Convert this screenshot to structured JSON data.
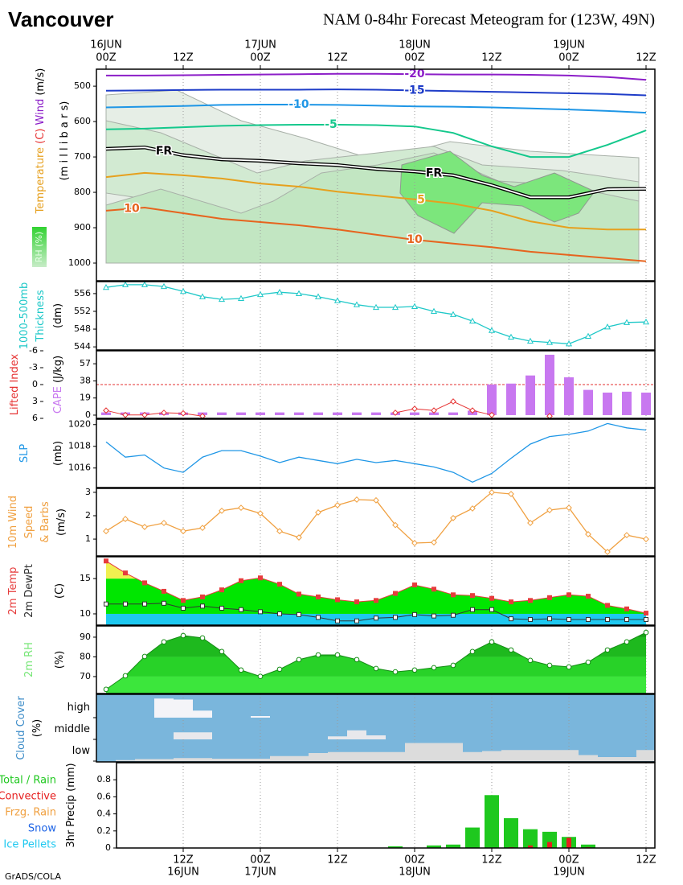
{
  "title": "Vancouver",
  "subtitle": "NAM 0-84hr Forecast Meteogram for (123W, 49N)",
  "credit": "GrADS/COLA",
  "time_axis": {
    "x": [
      0,
      3,
      6,
      9,
      12,
      15,
      18,
      21,
      24,
      27,
      30,
      33,
      36,
      39,
      42,
      45,
      48,
      51,
      54,
      57,
      60,
      63,
      66,
      69,
      72,
      75,
      78,
      81,
      84
    ],
    "xlim": [
      -1.5,
      85.375
    ],
    "top_xticks": [
      {
        "value": 0,
        "label": "00Z"
      },
      {
        "value": 12,
        "label": "12Z"
      },
      {
        "value": 24,
        "label": "00Z"
      },
      {
        "value": 36,
        "label": "12Z"
      },
      {
        "value": 48,
        "label": "00Z"
      },
      {
        "value": 60,
        "label": "12Z"
      },
      {
        "value": 72,
        "label": "00Z"
      },
      {
        "value": 84,
        "label": "12Z"
      }
    ],
    "top_dates": [
      {
        "value": 0,
        "label": "16JUN"
      },
      {
        "value": 24,
        "label": "17JUN"
      },
      {
        "value": 48,
        "label": "18JUN"
      },
      {
        "value": 72,
        "label": "19JUN"
      }
    ],
    "bottom_xticks": [
      {
        "value": 12,
        "label": "12Z"
      },
      {
        "value": 24,
        "label": "00Z"
      },
      {
        "value": 36,
        "label": "12Z"
      },
      {
        "value": 48,
        "label": "00Z"
      },
      {
        "value": 60,
        "label": "12Z"
      },
      {
        "value": 72,
        "label": "00Z"
      },
      {
        "value": 84,
        "label": "12Z"
      }
    ],
    "bottom_dates": [
      {
        "value": 12,
        "label": "16JUN"
      },
      {
        "value": 24,
        "label": "17JUN"
      },
      {
        "value": 48,
        "label": "18JUN"
      },
      {
        "value": 72,
        "label": "19JUN"
      }
    ]
  },
  "chart_data": [
    {
      "type": "contour",
      "ylabels": [
        [
          {
            "text": "Temperature",
            "color": "#e6a01e"
          },
          {
            "text": " (C)",
            "color": "#e63232"
          },
          {
            "text": " Wind",
            "color": "#8c1ec8"
          },
          {
            "text": " (m/s)",
            "color": "#000000"
          }
        ],
        [
          {
            "text": "(m i l l i b a r s)",
            "color": "#000000"
          }
        ]
      ],
      "rh_label": "RH (%)",
      "ylim": [
        1050,
        452
      ],
      "yticks": [
        500,
        600,
        700,
        800,
        900,
        1000
      ],
      "x": [
        0,
        6,
        12,
        18,
        24,
        30,
        36,
        42,
        48,
        54,
        60,
        66,
        72,
        78,
        84
      ],
      "series": [
        {
          "name": "-20",
          "color": "#8c1ec8",
          "values": [
            470,
            470,
            469,
            468,
            467,
            466,
            465,
            465,
            466,
            467,
            467,
            468,
            470,
            474,
            482
          ]
        },
        {
          "name": "-15",
          "color": "#1e3cc8",
          "values": [
            513,
            512,
            511,
            510,
            510,
            510,
            509,
            510,
            512,
            514,
            516,
            518,
            520,
            522,
            526
          ]
        },
        {
          "name": "-10",
          "color": "#1e96e6",
          "values": [
            560,
            558,
            556,
            553,
            552,
            552,
            553,
            555,
            557,
            558,
            560,
            563,
            566,
            570,
            575
          ]
        },
        {
          "name": "-5",
          "color": "#14c88c",
          "values": [
            622,
            620,
            616,
            612,
            610,
            609,
            609,
            610,
            614,
            632,
            670,
            700,
            700,
            666,
            625
          ]
        },
        {
          "name": "FR",
          "color": "#000000",
          "values": [
            677,
            673,
            695,
            707,
            711,
            718,
            723,
            734,
            741,
            752,
            780,
            814,
            814,
            791,
            790
          ]
        },
        {
          "name": "5",
          "color": "#e6a01e",
          "values": [
            757,
            745,
            752,
            761,
            775,
            784,
            798,
            809,
            820,
            832,
            852,
            882,
            900,
            905,
            905
          ]
        },
        {
          "name": "10",
          "color": "#e6641e",
          "values": [
            852,
            843,
            859,
            875,
            884,
            893,
            905,
            920,
            934,
            945,
            955,
            968,
            977,
            986,
            995
          ]
        }
      ]
    },
    {
      "type": "line",
      "ylabels": [
        [
          {
            "text": "1000-500mb",
            "color": "#1ec8c8"
          }
        ],
        [
          {
            "text": "Thickness",
            "color": "#1ec8c8"
          }
        ],
        [
          {
            "text": "(dm)",
            "color": "#000000"
          }
        ]
      ],
      "ylim": [
        543.3,
        558.7
      ],
      "yticks": [
        544,
        548,
        552,
        556
      ],
      "series": [
        {
          "name": "Thickness",
          "color": "#1ec8c8",
          "marker": "triangle",
          "marker_fill": "#ffffff",
          "values": [
            557.4,
            558,
            558,
            557.6,
            556.5,
            555.3,
            554.7,
            554.9,
            555.8,
            556.3,
            556,
            555.3,
            554.4,
            553.5,
            552.9,
            552.9,
            553.1,
            552,
            551.3,
            549.8,
            547.7,
            546.2,
            545.3,
            545,
            544.7,
            546.4,
            548.5,
            549.5,
            549.6
          ]
        }
      ]
    },
    {
      "type": "combo",
      "ylabels": [
        [
          {
            "text": "Lifted Index",
            "color": "#e63232"
          }
        ],
        [
          {
            "text": "CAPE",
            "color": "#c878f0"
          },
          {
            "text": " (J/kg)",
            "color": "#000000"
          }
        ]
      ],
      "ylim": [
        -3.6,
        71.4
      ],
      "yticks": [
        0,
        19,
        38,
        57
      ],
      "y2lim": [
        6,
        -6
      ],
      "y2ticks": [
        -6,
        -3,
        0,
        3,
        6
      ],
      "ref_line": {
        "axis": "y2",
        "value": 0,
        "color": "#e63232"
      },
      "series": [
        {
          "name": "CAPE",
          "kind": "bar",
          "color": "#c878f0",
          "values": [
            3,
            3,
            3,
            3,
            3,
            3,
            3,
            3,
            3,
            3,
            3,
            3,
            3,
            3,
            3,
            3,
            3,
            3,
            3,
            5,
            34,
            35,
            44,
            67,
            42,
            28,
            25,
            26,
            25
          ]
        },
        {
          "name": "Lifted Index",
          "axis": "y2",
          "color": "#e63232",
          "marker": "diamond",
          "marker_fill": "#ffffff",
          "values": [
            4.6,
            5.4,
            5.4,
            5.0,
            5.1,
            5.6,
            null,
            null,
            null,
            null,
            null,
            null,
            null,
            null,
            null,
            5.0,
            4.3,
            4.6,
            3.0,
            4.6,
            5.4,
            null,
            null,
            5.6,
            null,
            null,
            null,
            null,
            null
          ]
        }
      ]
    },
    {
      "type": "line",
      "ylabels": [
        [
          {
            "text": "SLP",
            "color": "#1e96e6"
          }
        ],
        [
          {
            "text": "(mb)",
            "color": "#000000"
          }
        ]
      ],
      "ylim": [
        1014.2,
        1020.5
      ],
      "yticks": [
        1016,
        1018,
        1020
      ],
      "series": [
        {
          "name": "SLP",
          "color": "#1e96e6",
          "values": [
            1018.4,
            1017.0,
            1017.2,
            1016.0,
            1015.6,
            1017.0,
            1017.6,
            1017.6,
            1017.1,
            1016.5,
            1017.0,
            1016.7,
            1016.4,
            1016.8,
            1016.5,
            1016.7,
            1016.4,
            1016.1,
            1015.6,
            1014.7,
            1015.5,
            1016.9,
            1018.2,
            1018.9,
            1019.1,
            1019.4,
            1020.1,
            1019.7,
            1019.5
          ]
        }
      ]
    },
    {
      "type": "line",
      "ylabels": [
        [
          {
            "text": "10m Wind",
            "color": "#f0a040"
          }
        ],
        [
          {
            "text": "Speed",
            "color": "#f0a040"
          }
        ],
        [
          {
            "text": "& Barbs",
            "color": "#f0a040"
          }
        ],
        [
          {
            "text": "(m/s)",
            "color": "#000000"
          }
        ]
      ],
      "ylim": [
        0.28,
        3.17
      ],
      "yticks": [
        1,
        2,
        3
      ],
      "series": [
        {
          "name": "10m Wind Speed",
          "color": "#f0a040",
          "marker": "diamond",
          "marker_fill": "#ffffff",
          "values": [
            1.34,
            1.86,
            1.52,
            1.69,
            1.34,
            1.48,
            2.21,
            2.34,
            2.1,
            1.34,
            1.07,
            2.14,
            2.45,
            2.69,
            2.66,
            1.6,
            0.83,
            0.86,
            1.9,
            2.31,
            3.0,
            2.93,
            1.69,
            2.24,
            2.34,
            1.21,
            0.45,
            1.17,
            1.0
          ]
        }
      ]
    },
    {
      "type": "area",
      "ylabels": [
        [
          {
            "text": "2m Temp",
            "color": "#e63c3c"
          }
        ],
        [
          {
            "text": "2m DewPt",
            "color": "#333333"
          }
        ],
        [
          {
            "text": "(C)",
            "color": "#000000"
          }
        ]
      ],
      "ylim": [
        8.4,
        18.1
      ],
      "yticks": [
        10,
        15
      ],
      "band_colors": [
        "#1ec8f0",
        "#00e600",
        "#f0f050"
      ],
      "series": [
        {
          "name": "2m Temp",
          "color": "#e63c3c",
          "fill": true,
          "marker": "square",
          "marker_fill": "#e63c3c",
          "values": [
            17.5,
            15.8,
            14.4,
            13.2,
            11.9,
            12.4,
            13.4,
            14.7,
            15.1,
            14.2,
            12.8,
            12.4,
            12.0,
            11.7,
            11.9,
            12.9,
            14.1,
            13.5,
            12.7,
            12.6,
            12.2,
            11.7,
            11.9,
            12.3,
            12.7,
            12.5,
            11.2,
            10.7,
            10.1
          ]
        },
        {
          "name": "2m DewPt",
          "color": "#333333",
          "marker": "square",
          "marker_fill": "#ffffff",
          "values": [
            11.4,
            11.4,
            11.4,
            11.5,
            10.8,
            11.1,
            10.8,
            10.6,
            10.3,
            10.0,
            9.9,
            9.5,
            9.0,
            9.0,
            9.4,
            9.5,
            9.9,
            9.7,
            9.8,
            10.6,
            10.6,
            9.3,
            9.2,
            9.3,
            9.2,
            9.2,
            9.2,
            9.2,
            9.2
          ]
        }
      ]
    },
    {
      "type": "area",
      "ylabels": [
        [
          {
            "text": "2m RH",
            "color": "#78e678"
          }
        ],
        [
          {
            "text": "(%)",
            "color": "#000000"
          }
        ]
      ],
      "ylim": [
        61.4,
        95.7
      ],
      "yticks": [
        70,
        80,
        90
      ],
      "band_colors": [
        "#3ce63c",
        "#28d228",
        "#1eb91e",
        "#14a014"
      ],
      "series": [
        {
          "name": "2m RH",
          "color": "#148c14",
          "fill": true,
          "marker": "circle",
          "marker_fill": "#ffffff",
          "values": [
            63.5,
            70.4,
            80.2,
            87.6,
            90.8,
            89.6,
            82.7,
            73.3,
            70.1,
            73.7,
            78.6,
            81.0,
            81.0,
            78.6,
            74.1,
            72.4,
            73.3,
            74.5,
            75.7,
            82.7,
            87.6,
            83.5,
            78.2,
            75.7,
            74.9,
            77.3,
            83.5,
            87.6,
            92.4
          ]
        }
      ]
    },
    {
      "type": "cloud",
      "ylabels": [
        [
          {
            "text": "Cloud Cover",
            "color": "#3c8cc8"
          }
        ],
        [
          {
            "text": "(%)",
            "color": "#000000"
          }
        ]
      ],
      "ylim": [
        0,
        100
      ],
      "background": "#7ab6dc",
      "series": [
        {
          "name": "high",
          "color": "#f4f4f8",
          "values": [
            0,
            0,
            0,
            95,
            90,
            35,
            0,
            0,
            8,
            0,
            0,
            0,
            0,
            0,
            0,
            0,
            0,
            0,
            0,
            0,
            0,
            0,
            0,
            0,
            0,
            0,
            0,
            0,
            0
          ]
        },
        {
          "name": "middle",
          "color": "#e8e8ec",
          "values": [
            0,
            0,
            0,
            0,
            35,
            35,
            0,
            0,
            0,
            0,
            0,
            0,
            15,
            45,
            20,
            0,
            0,
            0,
            0,
            0,
            0,
            0,
            0,
            0,
            0,
            0,
            0,
            0,
            0
          ]
        },
        {
          "name": "low",
          "color": "#dcdcdc",
          "values": [
            0,
            5,
            10,
            10,
            15,
            15,
            12,
            12,
            12,
            25,
            25,
            40,
            45,
            45,
            45,
            45,
            90,
            90,
            90,
            45,
            50,
            55,
            55,
            55,
            55,
            30,
            20,
            20,
            55
          ]
        }
      ]
    },
    {
      "type": "bar",
      "ylabels": [
        [
          {
            "text": "3hr Precip (mm)",
            "color": "#000000"
          }
        ]
      ],
      "ylim": [
        0,
        1.0
      ],
      "yticks": [
        0,
        0.2,
        0.4,
        0.6,
        0.8
      ],
      "series": [
        {
          "name": "Total / Rain",
          "color": "#1ec81e",
          "values": [
            0,
            0,
            0,
            0,
            0,
            0,
            0,
            0,
            0,
            0,
            0,
            0,
            0,
            0,
            0,
            0.02,
            0,
            0.03,
            0.04,
            0.24,
            0.62,
            0.35,
            0.22,
            0.19,
            0.13,
            0.04,
            0,
            0,
            0
          ]
        },
        {
          "name": "Convective",
          "color": "#e61e1e",
          "values": [
            0,
            0,
            0,
            0,
            0,
            0,
            0,
            0,
            0,
            0,
            0,
            0,
            0,
            0,
            0,
            0,
            0,
            0,
            0,
            0,
            0,
            0.01,
            0.03,
            0.07,
            0.12,
            0.01,
            0,
            0,
            0
          ]
        },
        {
          "name": "Frzg. Rain",
          "color": "#f0a040",
          "values": [
            0,
            0,
            0,
            0,
            0,
            0,
            0,
            0,
            0,
            0,
            0,
            0,
            0,
            0,
            0,
            0,
            0,
            0,
            0,
            0,
            0,
            0,
            0,
            0,
            0,
            0,
            0,
            0,
            0
          ]
        },
        {
          "name": "Snow",
          "color": "#1e64e6",
          "values": [
            0,
            0,
            0,
            0,
            0,
            0,
            0,
            0,
            0,
            0,
            0,
            0,
            0,
            0,
            0,
            0,
            0,
            0,
            0,
            0,
            0,
            0,
            0,
            0,
            0,
            0,
            0,
            0,
            0
          ]
        },
        {
          "name": "Ice Pellets",
          "color": "#1ec8f0",
          "values": [
            0,
            0,
            0,
            0,
            0,
            0,
            0,
            0,
            0,
            0,
            0,
            0,
            0,
            0,
            0,
            0,
            0,
            0,
            0,
            0,
            0,
            0,
            0,
            0,
            0,
            0,
            0,
            0,
            0
          ]
        }
      ]
    }
  ]
}
